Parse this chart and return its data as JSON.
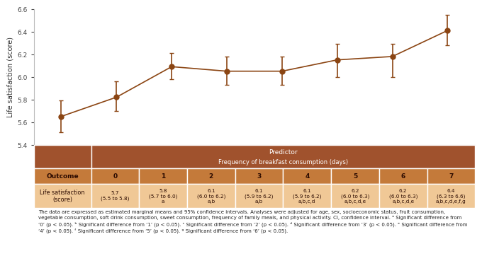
{
  "x": [
    0,
    1,
    2,
    3,
    4,
    5,
    6,
    7
  ],
  "y": [
    5.65,
    5.82,
    6.09,
    6.05,
    6.05,
    6.15,
    6.18,
    6.41
  ],
  "ci_lower": [
    5.51,
    5.7,
    5.98,
    5.93,
    5.93,
    6.0,
    6.0,
    6.28
  ],
  "ci_upper": [
    5.79,
    5.96,
    6.21,
    6.18,
    6.18,
    6.29,
    6.29,
    6.55
  ],
  "xlabel": "Frequency of breakfast consumption (days)",
  "ylabel": "Life satisfaction (score)",
  "ylim": [
    5.4,
    6.6
  ],
  "yticks": [
    5.4,
    5.6,
    5.8,
    6.0,
    6.2,
    6.4,
    6.6
  ],
  "line_color": "#8B4513",
  "marker_color": "#8B4513",
  "error_color": "#8B4513",
  "plot_bg": "#ffffff",
  "fig_bg": "#ffffff",
  "table_header_bg": "#A0522D",
  "table_header_fg": "#ffffff",
  "table_subheader_bg": "#C47A3A",
  "table_row_data_bg": "#F0C896",
  "table_border_color": "#ffffff",
  "table_col_headers": [
    "0",
    "1",
    "2",
    "3",
    "4",
    "5",
    "6",
    "7"
  ],
  "table_means": [
    "5.7",
    "5.8",
    "6.1",
    "6.1",
    "6.1",
    "6.2",
    "6.2",
    "6.4"
  ],
  "table_ci": [
    "(5.5 to 5.8)",
    "(5.7 to 6.0)",
    "(6.0 to 6.2)",
    "(5.9 to 6.2)",
    "(5.9 to 6.2)",
    "(6.0 to 6.3)",
    "(6.0 to 6.3)",
    "(6.3 to 6.6)"
  ],
  "table_sig": [
    "",
    "a",
    "a,b",
    "a,b",
    "a,b,c,d",
    "a,b,c,d,e",
    "a,b,c,d,e",
    "a,b,c,d,e,f,g"
  ],
  "predictor_label1": "Predictor",
  "predictor_label2": "Frequency of breakfast consumption (days)",
  "outcome_label": "Outcome",
  "outcome_row_label": "Life satisfaction\n(score)",
  "footnote_line1": "The data are expressed as estimated marginal means and 95% confidence intervals. Analyses were adjusted for age, sex, socioeconomic status, fruit consumption,",
  "footnote_line2": "vegetable consumption, soft drink consumption, sweet consumption, frequency of family meals, and physical activity. CI, confidence interval. ᵃ Significant difference from",
  "footnote_line3": "‘0’ (p < 0.05). ᵇ Significant difference from ‘1’ (p < 0.05). ᶜ Significant difference from ‘2’ (p < 0.05). ᵈ Significant difference from ‘3’ (p < 0.05). ᵉ Significant difference from",
  "footnote_line4": "‘4’ (p < 0.05). ᶠ Significant difference from ‘5’ (p < 0.05). ᵍ Significant difference from ‘6’ (p < 0.05)."
}
